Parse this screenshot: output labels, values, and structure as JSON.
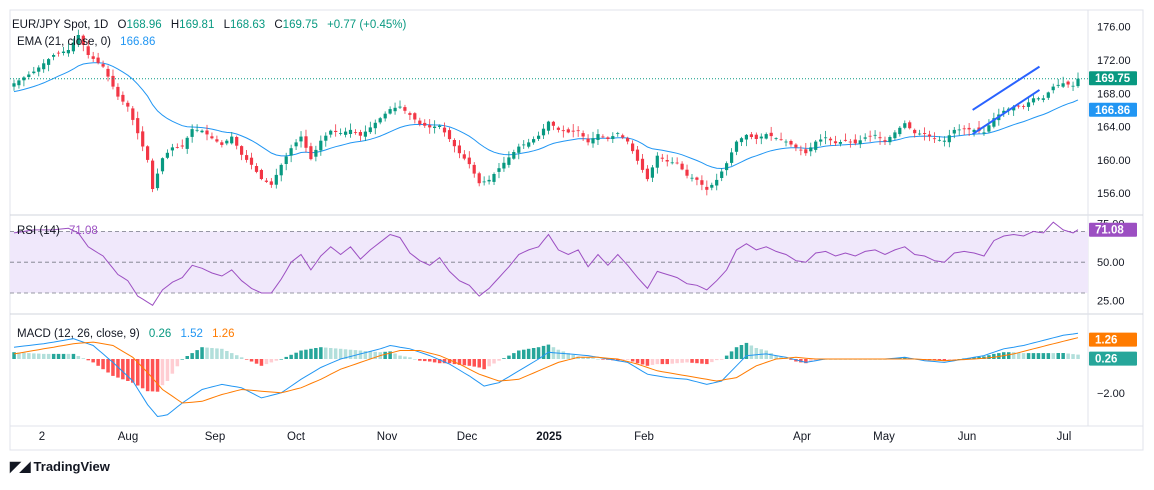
{
  "header": {
    "symbol": "EUR/JPY Spot, 1D",
    "o_label": "O",
    "o_value": "168.96",
    "h_label": "H",
    "h_value": "169.81",
    "l_label": "L",
    "l_value": "168.63",
    "c_label": "C",
    "c_value": "169.75",
    "change": "+0.77 (+0.45%)"
  },
  "ema_legend": {
    "label": "EMA (21, close, 0)",
    "value": "166.86"
  },
  "rsi_legend": {
    "label": "RSI (14)",
    "value": "71.08"
  },
  "macd_legend": {
    "label": "MACD (12, 26, close, 9)",
    "hist": "0.26",
    "macd": "1.52",
    "signal": "1.26"
  },
  "branding": {
    "name": "TradingView"
  },
  "colors": {
    "up": "#089981",
    "down": "#f23645",
    "ema": "#2196f3",
    "rsi": "#9c4fc2",
    "signal": "#ff7b00",
    "channel": "#2962ff",
    "rsi_band": "#f0e8fb"
  },
  "chart_data": [
    {
      "type": "candlestick",
      "title": "EUR/JPY Spot, 1D",
      "x_ticks": [
        "2",
        "Aug",
        "Sep",
        "Oct",
        "Nov",
        "Dec",
        "2025",
        "Feb",
        "Apr",
        "May",
        "Jun",
        "Jul"
      ],
      "y_ticks": [
        "156.00",
        "160.00",
        "164.00",
        "168.00",
        "172.00",
        "176.00"
      ],
      "ylim": [
        153.5,
        178
      ],
      "last_price": "169.75",
      "ema_value": "166.86",
      "close_anchors": [
        [
          0,
          169.2
        ],
        [
          4,
          170.6
        ],
        [
          8,
          172.6
        ],
        [
          11,
          173.2
        ],
        [
          13,
          175.0
        ],
        [
          15,
          172.6
        ],
        [
          18,
          171.2
        ],
        [
          21,
          167.6
        ],
        [
          23,
          166.4
        ],
        [
          25,
          163.2
        ],
        [
          27,
          160.0
        ],
        [
          28,
          156.5
        ],
        [
          30,
          160.2
        ],
        [
          32,
          161.5
        ],
        [
          34,
          161.6
        ],
        [
          36,
          163.7
        ],
        [
          38,
          163.5
        ],
        [
          40,
          162.6
        ],
        [
          42,
          161.8
        ],
        [
          44,
          162.8
        ],
        [
          46,
          160.6
        ],
        [
          48,
          159.4
        ],
        [
          50,
          157.7
        ],
        [
          52,
          157.0
        ],
        [
          54,
          159.4
        ],
        [
          56,
          161.4
        ],
        [
          58,
          162.8
        ],
        [
          60,
          160.1
        ],
        [
          62,
          162.3
        ],
        [
          64,
          163.5
        ],
        [
          66,
          163.2
        ],
        [
          68,
          163.6
        ],
        [
          70,
          162.9
        ],
        [
          72,
          163.9
        ],
        [
          74,
          165.0
        ],
        [
          76,
          166.1
        ],
        [
          78,
          166.4
        ],
        [
          80,
          165.4
        ],
        [
          82,
          164.3
        ],
        [
          84,
          163.9
        ],
        [
          86,
          164.1
        ],
        [
          88,
          162.5
        ],
        [
          90,
          160.8
        ],
        [
          92,
          159.5
        ],
        [
          94,
          157.2
        ],
        [
          96,
          157.6
        ],
        [
          98,
          159.0
        ],
        [
          100,
          160.3
        ],
        [
          102,
          161.6
        ],
        [
          104,
          162.1
        ],
        [
          106,
          162.9
        ],
        [
          108,
          164.6
        ],
        [
          110,
          163.6
        ],
        [
          112,
          163.3
        ],
        [
          114,
          163.5
        ],
        [
          116,
          162.1
        ],
        [
          118,
          163.1
        ],
        [
          120,
          162.5
        ],
        [
          122,
          163.2
        ],
        [
          124,
          162.2
        ],
        [
          126,
          159.9
        ],
        [
          128,
          157.7
        ],
        [
          130,
          160.5
        ],
        [
          132,
          159.8
        ],
        [
          134,
          159.6
        ],
        [
          136,
          158.1
        ],
        [
          138,
          157.6
        ],
        [
          140,
          156.4
        ],
        [
          142,
          157.6
        ],
        [
          144,
          159.6
        ],
        [
          146,
          162.2
        ],
        [
          148,
          163.0
        ],
        [
          150,
          162.5
        ],
        [
          152,
          163.1
        ],
        [
          154,
          162.6
        ],
        [
          156,
          162.2
        ],
        [
          158,
          161.5
        ],
        [
          160,
          160.8
        ],
        [
          162,
          162.2
        ],
        [
          164,
          162.7
        ],
        [
          166,
          162.0
        ],
        [
          168,
          162.3
        ],
        [
          170,
          162.0
        ],
        [
          172,
          162.7
        ],
        [
          174,
          163.0
        ],
        [
          176,
          162.2
        ],
        [
          178,
          163.3
        ],
        [
          180,
          164.4
        ],
        [
          182,
          163.2
        ],
        [
          184,
          163.1
        ],
        [
          186,
          162.5
        ],
        [
          188,
          162.3
        ],
        [
          190,
          163.6
        ],
        [
          192,
          163.7
        ],
        [
          194,
          163.6
        ],
        [
          196,
          163.3
        ],
        [
          198,
          165.0
        ],
        [
          200,
          165.9
        ],
        [
          202,
          166.4
        ],
        [
          204,
          166.4
        ],
        [
          206,
          167.4
        ],
        [
          208,
          167.4
        ],
        [
          210,
          168.8
        ],
        [
          212,
          169.2
        ],
        [
          214,
          168.9
        ],
        [
          215,
          169.75
        ]
      ],
      "channel": {
        "upper": [
          [
            0.893,
            166.0
          ],
          [
            0.955,
            171.2
          ]
        ],
        "lower": [
          [
            0.893,
            163.1
          ],
          [
            0.955,
            168.4
          ]
        ]
      }
    },
    {
      "type": "line",
      "title": "RSI (14)",
      "y_ticks": [
        "25.00",
        "50.00",
        "75.00"
      ],
      "ylim": [
        17,
        80
      ],
      "band": [
        30,
        70
      ],
      "last_value": "71.08",
      "anchors": [
        [
          0,
          69
        ],
        [
          4,
          71
        ],
        [
          8,
          71
        ],
        [
          11,
          72
        ],
        [
          13,
          69
        ],
        [
          15,
          60
        ],
        [
          18,
          54
        ],
        [
          21,
          42
        ],
        [
          23,
          38
        ],
        [
          25,
          28
        ],
        [
          27,
          24
        ],
        [
          28,
          22
        ],
        [
          30,
          32
        ],
        [
          32,
          37
        ],
        [
          34,
          40
        ],
        [
          36,
          48
        ],
        [
          38,
          46
        ],
        [
          40,
          43
        ],
        [
          42,
          41
        ],
        [
          44,
          45
        ],
        [
          46,
          38
        ],
        [
          48,
          33
        ],
        [
          50,
          30
        ],
        [
          52,
          30
        ],
        [
          54,
          39
        ],
        [
          56,
          50
        ],
        [
          58,
          55
        ],
        [
          60,
          45
        ],
        [
          62,
          54
        ],
        [
          64,
          60
        ],
        [
          66,
          55
        ],
        [
          68,
          60
        ],
        [
          70,
          52
        ],
        [
          72,
          58
        ],
        [
          74,
          63
        ],
        [
          76,
          68
        ],
        [
          78,
          66
        ],
        [
          80,
          56
        ],
        [
          82,
          51
        ],
        [
          84,
          48
        ],
        [
          86,
          53
        ],
        [
          88,
          44
        ],
        [
          90,
          38
        ],
        [
          92,
          35
        ],
        [
          94,
          28
        ],
        [
          96,
          33
        ],
        [
          98,
          40
        ],
        [
          100,
          47
        ],
        [
          102,
          55
        ],
        [
          104,
          58
        ],
        [
          106,
          60
        ],
        [
          108,
          68
        ],
        [
          110,
          58
        ],
        [
          112,
          55
        ],
        [
          114,
          58
        ],
        [
          116,
          47
        ],
        [
          118,
          55
        ],
        [
          120,
          48
        ],
        [
          122,
          55
        ],
        [
          124,
          48
        ],
        [
          126,
          40
        ],
        [
          128,
          33
        ],
        [
          130,
          44
        ],
        [
          132,
          42
        ],
        [
          134,
          40
        ],
        [
          136,
          36
        ],
        [
          138,
          35
        ],
        [
          140,
          32
        ],
        [
          142,
          38
        ],
        [
          144,
          45
        ],
        [
          146,
          58
        ],
        [
          148,
          62
        ],
        [
          150,
          58
        ],
        [
          152,
          60
        ],
        [
          154,
          57
        ],
        [
          156,
          55
        ],
        [
          158,
          51
        ],
        [
          160,
          50
        ],
        [
          162,
          56
        ],
        [
          164,
          57
        ],
        [
          166,
          54
        ],
        [
          168,
          56
        ],
        [
          170,
          54
        ],
        [
          172,
          57
        ],
        [
          174,
          58
        ],
        [
          176,
          55
        ],
        [
          178,
          58
        ],
        [
          180,
          60
        ],
        [
          182,
          55
        ],
        [
          184,
          54
        ],
        [
          186,
          51
        ],
        [
          188,
          50
        ],
        [
          190,
          56
        ],
        [
          192,
          57
        ],
        [
          194,
          56
        ],
        [
          196,
          54
        ],
        [
          198,
          64
        ],
        [
          200,
          67
        ],
        [
          202,
          68
        ],
        [
          204,
          67
        ],
        [
          206,
          70
        ],
        [
          208,
          69
        ],
        [
          210,
          76
        ],
        [
          212,
          71
        ],
        [
          214,
          69
        ],
        [
          215,
          71.08
        ]
      ]
    },
    {
      "type": "line",
      "title": "MACD (12, 26, close, 9)",
      "y_ticks": [
        "-2.00"
      ],
      "ylim": [
        -3.9,
        2.6
      ],
      "macd_last": "1.52",
      "signal_last": "1.26",
      "hist_last": "0.26",
      "macd_anchors": [
        [
          0,
          0.7
        ],
        [
          6,
          0.9
        ],
        [
          12,
          1.2
        ],
        [
          16,
          0.8
        ],
        [
          20,
          -0.2
        ],
        [
          24,
          -1.3
        ],
        [
          27,
          -2.7
        ],
        [
          29,
          -3.4
        ],
        [
          31,
          -3.3
        ],
        [
          34,
          -2.6
        ],
        [
          38,
          -1.8
        ],
        [
          42,
          -1.5
        ],
        [
          46,
          -1.7
        ],
        [
          50,
          -2.3
        ],
        [
          54,
          -2.0
        ],
        [
          58,
          -1.2
        ],
        [
          62,
          -0.5
        ],
        [
          66,
          0.0
        ],
        [
          70,
          0.3
        ],
        [
          74,
          0.6
        ],
        [
          76,
          0.8
        ],
        [
          80,
          0.6
        ],
        [
          84,
          0.2
        ],
        [
          88,
          -0.3
        ],
        [
          92,
          -1.0
        ],
        [
          95,
          -1.6
        ],
        [
          98,
          -1.4
        ],
        [
          102,
          -0.7
        ],
        [
          106,
          0.0
        ],
        [
          108,
          0.4
        ],
        [
          112,
          0.3
        ],
        [
          116,
          0.2
        ],
        [
          120,
          0.0
        ],
        [
          124,
          -0.2
        ],
        [
          128,
          -0.9
        ],
        [
          132,
          -1.1
        ],
        [
          136,
          -1.2
        ],
        [
          140,
          -1.5
        ],
        [
          143,
          -1.3
        ],
        [
          146,
          -0.4
        ],
        [
          148,
          0.2
        ],
        [
          152,
          0.3
        ],
        [
          156,
          0.1
        ],
        [
          160,
          -0.2
        ],
        [
          164,
          0.0
        ],
        [
          170,
          0.0
        ],
        [
          176,
          0.0
        ],
        [
          180,
          0.1
        ],
        [
          184,
          -0.1
        ],
        [
          188,
          -0.2
        ],
        [
          192,
          0.0
        ],
        [
          196,
          0.2
        ],
        [
          200,
          0.6
        ],
        [
          204,
          0.8
        ],
        [
          208,
          1.1
        ],
        [
          212,
          1.4
        ],
        [
          215,
          1.52
        ]
      ],
      "signal_anchors": [
        [
          0,
          0.3
        ],
        [
          6,
          0.6
        ],
        [
          12,
          0.9
        ],
        [
          16,
          1.0
        ],
        [
          20,
          0.8
        ],
        [
          24,
          0.1
        ],
        [
          27,
          -0.8
        ],
        [
          30,
          -1.8
        ],
        [
          34,
          -2.6
        ],
        [
          38,
          -2.5
        ],
        [
          42,
          -2.1
        ],
        [
          46,
          -1.8
        ],
        [
          50,
          -1.9
        ],
        [
          54,
          -2.0
        ],
        [
          58,
          -1.7
        ],
        [
          62,
          -1.2
        ],
        [
          66,
          -0.6
        ],
        [
          70,
          -0.2
        ],
        [
          74,
          0.2
        ],
        [
          78,
          0.5
        ],
        [
          82,
          0.5
        ],
        [
          86,
          0.2
        ],
        [
          90,
          -0.3
        ],
        [
          94,
          -0.9
        ],
        [
          98,
          -1.3
        ],
        [
          102,
          -1.2
        ],
        [
          106,
          -0.7
        ],
        [
          110,
          -0.2
        ],
        [
          114,
          0.1
        ],
        [
          118,
          0.1
        ],
        [
          122,
          0.0
        ],
        [
          126,
          -0.3
        ],
        [
          130,
          -0.7
        ],
        [
          134,
          -0.9
        ],
        [
          138,
          -1.1
        ],
        [
          142,
          -1.3
        ],
        [
          146,
          -1.1
        ],
        [
          150,
          -0.4
        ],
        [
          154,
          0.0
        ],
        [
          158,
          0.1
        ],
        [
          162,
          0.0
        ],
        [
          168,
          0.0
        ],
        [
          176,
          0.0
        ],
        [
          182,
          0.0
        ],
        [
          188,
          -0.1
        ],
        [
          194,
          0.0
        ],
        [
          198,
          0.1
        ],
        [
          202,
          0.3
        ],
        [
          206,
          0.6
        ],
        [
          210,
          0.9
        ],
        [
          215,
          1.26
        ]
      ]
    }
  ]
}
